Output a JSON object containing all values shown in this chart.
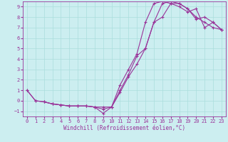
{
  "xlabel": "Windchill (Refroidissement éolien,°C)",
  "bg_color": "#cceef0",
  "line_color": "#993399",
  "grid_color": "#aadddd",
  "xlim": [
    -0.5,
    23.5
  ],
  "ylim": [
    -1.5,
    9.5
  ],
  "xticks": [
    0,
    1,
    2,
    3,
    4,
    5,
    6,
    7,
    8,
    9,
    10,
    11,
    12,
    13,
    14,
    15,
    16,
    17,
    18,
    19,
    20,
    21,
    22,
    23
  ],
  "yticks": [
    -1,
    0,
    1,
    2,
    3,
    4,
    5,
    6,
    7,
    8,
    9
  ],
  "line1_x": [
    0,
    1,
    2,
    3,
    4,
    5,
    6,
    7,
    8,
    9,
    10,
    11,
    12,
    13,
    14,
    15,
    16,
    17,
    18,
    19,
    20,
    21,
    22,
    23
  ],
  "line1_y": [
    1,
    0,
    -0.1,
    -0.3,
    -0.4,
    -0.5,
    -0.5,
    -0.5,
    -0.6,
    -1.2,
    -0.6,
    1.0,
    2.5,
    4.3,
    5.0,
    7.5,
    9.3,
    9.5,
    9.3,
    8.8,
    8.0,
    7.5,
    7.0,
    6.8
  ],
  "line2_x": [
    2,
    3,
    4,
    5,
    6,
    7,
    8,
    9,
    10,
    11,
    12,
    13,
    14,
    15,
    16,
    17,
    18,
    19,
    20,
    21,
    22,
    23
  ],
  "line2_y": [
    -0.1,
    -0.3,
    -0.4,
    -0.5,
    -0.5,
    -0.5,
    -0.6,
    -0.8,
    -0.6,
    1.5,
    3.0,
    4.5,
    7.5,
    9.3,
    9.5,
    9.3,
    9.3,
    8.8,
    7.8,
    8.0,
    7.5,
    6.8
  ],
  "line3_x": [
    0,
    1,
    2,
    3,
    4,
    5,
    6,
    7,
    8,
    9,
    10,
    11,
    12,
    13,
    14,
    15,
    16,
    17,
    18,
    19,
    20,
    21,
    22,
    23
  ],
  "line3_y": [
    1,
    0,
    -0.1,
    -0.3,
    -0.4,
    -0.5,
    -0.5,
    -0.5,
    -0.6,
    -0.6,
    -0.6,
    0.8,
    2.3,
    3.5,
    5.0,
    7.5,
    8.0,
    9.3,
    9.0,
    8.5,
    8.8,
    7.0,
    7.5,
    6.8
  ],
  "tick_fontsize": 5,
  "xlabel_fontsize": 5.5
}
